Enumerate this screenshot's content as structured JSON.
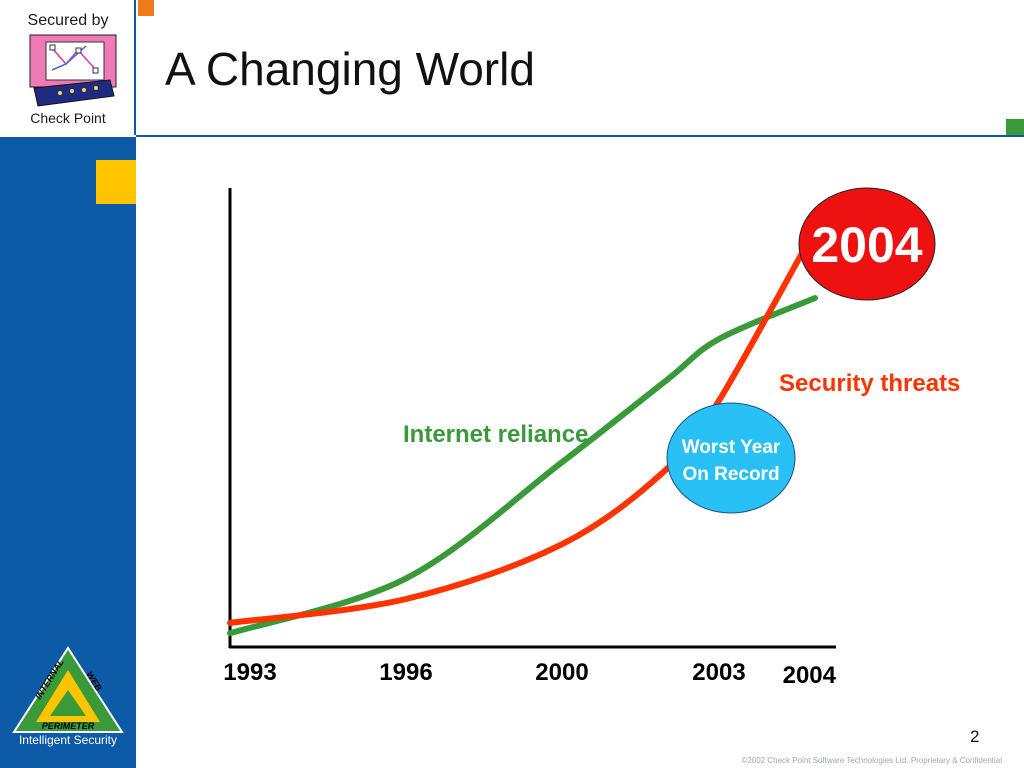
{
  "header": {
    "title": "A Changing World",
    "logo_top": "Secured by",
    "logo_bottom": "Check Point"
  },
  "sidebar": {
    "tagline": "Intelligent Security",
    "logo_words": [
      "INTERNAL",
      "WEB",
      "PERIMETER"
    ]
  },
  "footer": {
    "page_number": "2",
    "copyright": "©2002 Check Point Software Technologies Ltd. Proprietary & Confidential"
  },
  "colors": {
    "blue": "#0d5aa7",
    "green": "#3a9a3a",
    "red": "#ff3300",
    "circle_red": "#ee1111",
    "circle_blue": "#29c1f5",
    "yellow": "#ffc400",
    "orange": "#f07a1a"
  },
  "chart_data": {
    "type": "line",
    "x_ticks": [
      "1993",
      "1996",
      "2000",
      "2003",
      "2004"
    ],
    "series": [
      {
        "name": "Internet reliance",
        "color": "#3a9a3a",
        "x": [
          1993,
          1996,
          2000,
          2002,
          2003,
          2004
        ],
        "y": [
          2,
          18,
          52,
          76,
          88,
          100
        ]
      },
      {
        "name": "Security threats",
        "color": "#ff3300",
        "x": [
          1993,
          1996,
          2000,
          2002,
          2003,
          2004
        ],
        "y": [
          5,
          12,
          28,
          50,
          70,
          120
        ]
      }
    ],
    "annotations": [
      {
        "text": [
          "2004"
        ],
        "color": "#ee1111"
      },
      {
        "text": [
          "Worst Year",
          "On Record"
        ],
        "color": "#29c1f5"
      }
    ]
  }
}
